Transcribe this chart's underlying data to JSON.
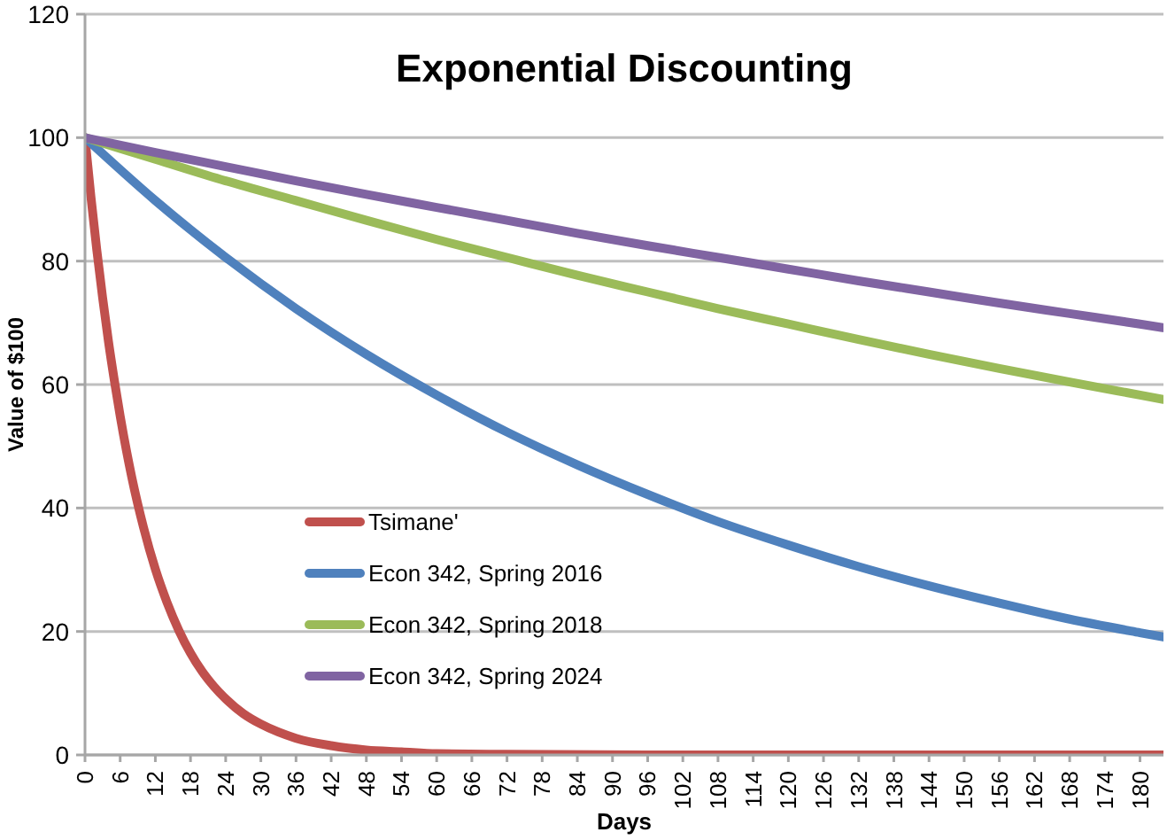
{
  "chart_data": {
    "type": "line",
    "title": "Exponential Discounting",
    "xlabel": "Days",
    "ylabel": "Value of $100",
    "xlim": [
      0,
      184
    ],
    "xticks": [
      0,
      6,
      12,
      18,
      24,
      30,
      36,
      42,
      48,
      54,
      60,
      66,
      72,
      78,
      84,
      90,
      96,
      102,
      108,
      114,
      120,
      126,
      132,
      138,
      144,
      150,
      156,
      162,
      168,
      174,
      180
    ],
    "ylim": [
      0,
      120
    ],
    "yticks": [
      0,
      20,
      40,
      60,
      80,
      100,
      120
    ],
    "grid": "y",
    "legend": "bottom left",
    "marker": "none",
    "line_style": "solid",
    "series": [
      {
        "name": "Tsimane'",
        "color": "#c0504d",
        "x": [
          0,
          1,
          2,
          3,
          4,
          5,
          6,
          8,
          10,
          12,
          14,
          16,
          18,
          20,
          22,
          24,
          27,
          30,
          33,
          36,
          42,
          48,
          54,
          60,
          72,
          96,
          120,
          150,
          184
        ],
        "values": [
          100,
          90.5,
          81.9,
          74.1,
          67.0,
          60.7,
          54.9,
          44.9,
          36.8,
          30.1,
          24.7,
          20.2,
          16.5,
          13.5,
          11.1,
          9.1,
          6.7,
          5.0,
          3.7,
          2.7,
          1.5,
          0.8,
          0.5,
          0.2,
          0.1,
          0,
          0,
          0,
          0
        ]
      },
      {
        "name": "Econ 342, Spring 2016",
        "color": "#4f81bd",
        "x": [
          0,
          12,
          24,
          36,
          48,
          60,
          72,
          84,
          96,
          108,
          120,
          132,
          144,
          156,
          168,
          180,
          184
        ],
        "values": [
          100,
          89.8,
          80.6,
          72.3,
          64.9,
          58.3,
          52.3,
          47.0,
          42.2,
          37.8,
          34.0,
          30.5,
          27.4,
          24.6,
          22.0,
          19.8,
          19.1
        ]
      },
      {
        "name": "Econ 342, Spring 2018",
        "color": "#9bbb59",
        "x": [
          0,
          12,
          24,
          36,
          48,
          60,
          72,
          84,
          96,
          108,
          120,
          132,
          144,
          156,
          168,
          180,
          184
        ],
        "values": [
          100,
          96.5,
          93.0,
          89.8,
          86.6,
          83.5,
          80.6,
          77.7,
          75.0,
          72.3,
          69.8,
          67.3,
          64.9,
          62.6,
          60.4,
          58.3,
          57.6
        ]
      },
      {
        "name": "Econ 342, Spring 2024",
        "color": "#8064a2",
        "x": [
          0,
          12,
          24,
          36,
          48,
          60,
          72,
          84,
          96,
          108,
          120,
          132,
          144,
          156,
          168,
          180,
          184
        ],
        "values": [
          100,
          97.6,
          95.3,
          93.0,
          90.8,
          88.7,
          86.6,
          84.5,
          82.5,
          80.6,
          78.7,
          76.8,
          75.0,
          73.2,
          71.5,
          69.8,
          69.2
        ]
      }
    ]
  }
}
